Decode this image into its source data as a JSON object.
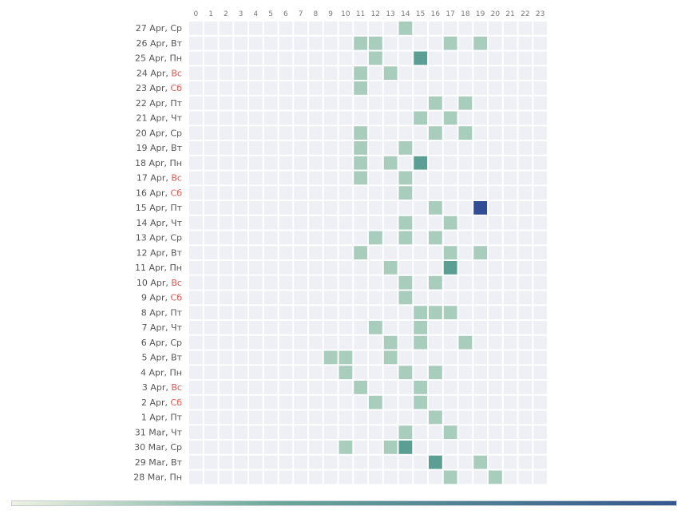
{
  "chart_data": {
    "type": "heatmap",
    "hours": [
      "0",
      "1",
      "2",
      "3",
      "4",
      "5",
      "6",
      "7",
      "8",
      "9",
      "10",
      "11",
      "12",
      "13",
      "14",
      "15",
      "16",
      "17",
      "18",
      "19",
      "20",
      "21",
      "22",
      "23"
    ],
    "rows": [
      {
        "date": "27 Apr",
        "day": "Ср",
        "weekend": false
      },
      {
        "date": "26 Apr",
        "day": "Вт",
        "weekend": false
      },
      {
        "date": "25 Apr",
        "day": "Пн",
        "weekend": false
      },
      {
        "date": "24 Apr",
        "day": "Вс",
        "weekend": true
      },
      {
        "date": "23 Apr",
        "day": "Сб",
        "weekend": true
      },
      {
        "date": "22 Apr",
        "day": "Пт",
        "weekend": false
      },
      {
        "date": "21 Apr",
        "day": "Чт",
        "weekend": false
      },
      {
        "date": "20 Apr",
        "day": "Ср",
        "weekend": false
      },
      {
        "date": "19 Apr",
        "day": "Вт",
        "weekend": false
      },
      {
        "date": "18 Apr",
        "day": "Пн",
        "weekend": false
      },
      {
        "date": "17 Apr",
        "day": "Вс",
        "weekend": true
      },
      {
        "date": "16 Apr",
        "day": "Сб",
        "weekend": true
      },
      {
        "date": "15 Apr",
        "day": "Пт",
        "weekend": false
      },
      {
        "date": "14 Apr",
        "day": "Чт",
        "weekend": false
      },
      {
        "date": "13 Apr",
        "day": "Ср",
        "weekend": false
      },
      {
        "date": "12 Apr",
        "day": "Вт",
        "weekend": false
      },
      {
        "date": "11 Apr",
        "day": "Пн",
        "weekend": false
      },
      {
        "date": "10 Apr",
        "day": "Вс",
        "weekend": true
      },
      {
        "date": "9 Apr",
        "day": "Сб",
        "weekend": true
      },
      {
        "date": "8 Apr",
        "day": "Пт",
        "weekend": false
      },
      {
        "date": "7 Apr",
        "day": "Чт",
        "weekend": false
      },
      {
        "date": "6 Apr",
        "day": "Ср",
        "weekend": false
      },
      {
        "date": "5 Apr",
        "day": "Вт",
        "weekend": false
      },
      {
        "date": "4 Apr",
        "day": "Пн",
        "weekend": false
      },
      {
        "date": "3 Apr",
        "day": "Вс",
        "weekend": true
      },
      {
        "date": "2 Apr",
        "day": "Сб",
        "weekend": true
      },
      {
        "date": "1 Apr",
        "day": "Пт",
        "weekend": false
      },
      {
        "date": "31 Mar",
        "day": "Чт",
        "weekend": false
      },
      {
        "date": "30 Mar",
        "day": "Ср",
        "weekend": false
      },
      {
        "date": "29 Mar",
        "day": "Вт",
        "weekend": false
      },
      {
        "date": "28 Mar",
        "day": "Пн",
        "weekend": false
      }
    ],
    "cells": [
      {
        "row": 0,
        "hour": 14,
        "value": 1
      },
      {
        "row": 1,
        "hour": 11,
        "value": 1
      },
      {
        "row": 1,
        "hour": 12,
        "value": 1
      },
      {
        "row": 1,
        "hour": 17,
        "value": 1
      },
      {
        "row": 1,
        "hour": 19,
        "value": 1
      },
      {
        "row": 2,
        "hour": 12,
        "value": 1
      },
      {
        "row": 2,
        "hour": 15,
        "value": 2
      },
      {
        "row": 3,
        "hour": 11,
        "value": 1
      },
      {
        "row": 3,
        "hour": 13,
        "value": 1
      },
      {
        "row": 4,
        "hour": 11,
        "value": 1
      },
      {
        "row": 5,
        "hour": 16,
        "value": 1
      },
      {
        "row": 5,
        "hour": 18,
        "value": 1
      },
      {
        "row": 6,
        "hour": 15,
        "value": 1
      },
      {
        "row": 6,
        "hour": 17,
        "value": 1
      },
      {
        "row": 7,
        "hour": 11,
        "value": 1
      },
      {
        "row": 7,
        "hour": 16,
        "value": 1
      },
      {
        "row": 7,
        "hour": 18,
        "value": 1
      },
      {
        "row": 8,
        "hour": 11,
        "value": 1
      },
      {
        "row": 8,
        "hour": 14,
        "value": 1
      },
      {
        "row": 9,
        "hour": 11,
        "value": 1
      },
      {
        "row": 9,
        "hour": 13,
        "value": 1
      },
      {
        "row": 9,
        "hour": 15,
        "value": 2
      },
      {
        "row": 10,
        "hour": 11,
        "value": 1
      },
      {
        "row": 10,
        "hour": 14,
        "value": 1
      },
      {
        "row": 11,
        "hour": 14,
        "value": 1
      },
      {
        "row": 12,
        "hour": 16,
        "value": 1
      },
      {
        "row": 12,
        "hour": 19,
        "value": 3
      },
      {
        "row": 13,
        "hour": 14,
        "value": 1
      },
      {
        "row": 13,
        "hour": 17,
        "value": 1
      },
      {
        "row": 14,
        "hour": 12,
        "value": 1
      },
      {
        "row": 14,
        "hour": 14,
        "value": 1
      },
      {
        "row": 14,
        "hour": 16,
        "value": 1
      },
      {
        "row": 15,
        "hour": 11,
        "value": 1
      },
      {
        "row": 15,
        "hour": 17,
        "value": 1
      },
      {
        "row": 15,
        "hour": 19,
        "value": 1
      },
      {
        "row": 16,
        "hour": 13,
        "value": 1
      },
      {
        "row": 16,
        "hour": 17,
        "value": 2
      },
      {
        "row": 17,
        "hour": 14,
        "value": 1
      },
      {
        "row": 17,
        "hour": 16,
        "value": 1
      },
      {
        "row": 18,
        "hour": 14,
        "value": 1
      },
      {
        "row": 19,
        "hour": 15,
        "value": 1
      },
      {
        "row": 19,
        "hour": 16,
        "value": 1
      },
      {
        "row": 19,
        "hour": 17,
        "value": 1
      },
      {
        "row": 20,
        "hour": 12,
        "value": 1
      },
      {
        "row": 20,
        "hour": 15,
        "value": 1
      },
      {
        "row": 21,
        "hour": 13,
        "value": 1
      },
      {
        "row": 21,
        "hour": 15,
        "value": 1
      },
      {
        "row": 21,
        "hour": 18,
        "value": 1
      },
      {
        "row": 22,
        "hour": 9,
        "value": 1
      },
      {
        "row": 22,
        "hour": 10,
        "value": 1
      },
      {
        "row": 22,
        "hour": 13,
        "value": 1
      },
      {
        "row": 23,
        "hour": 10,
        "value": 1
      },
      {
        "row": 23,
        "hour": 14,
        "value": 1
      },
      {
        "row": 23,
        "hour": 16,
        "value": 1
      },
      {
        "row": 24,
        "hour": 11,
        "value": 1
      },
      {
        "row": 24,
        "hour": 15,
        "value": 1
      },
      {
        "row": 25,
        "hour": 12,
        "value": 1
      },
      {
        "row": 25,
        "hour": 15,
        "value": 1
      },
      {
        "row": 26,
        "hour": 16,
        "value": 1
      },
      {
        "row": 27,
        "hour": 14,
        "value": 1
      },
      {
        "row": 27,
        "hour": 17,
        "value": 1
      },
      {
        "row": 28,
        "hour": 10,
        "value": 1
      },
      {
        "row": 28,
        "hour": 13,
        "value": 1
      },
      {
        "row": 28,
        "hour": 14,
        "value": 2
      },
      {
        "row": 29,
        "hour": 16,
        "value": 2
      },
      {
        "row": 29,
        "hour": 19,
        "value": 1
      },
      {
        "row": 30,
        "hour": 17,
        "value": 1
      },
      {
        "row": 30,
        "hour": 20,
        "value": 1
      }
    ],
    "scale": {
      "min": 0,
      "max": 3
    },
    "colors": {
      "empty": "#eef0f6",
      "level_1": "#a8cdbd",
      "level_2": "#5a9e94",
      "level_3": "#2f4e93",
      "weekend_label": "#e0574f",
      "gradient_start": "#eef2e2",
      "gradient_mid": "#6aa898",
      "gradient_end": "#34558f"
    },
    "legend": "bottom"
  }
}
